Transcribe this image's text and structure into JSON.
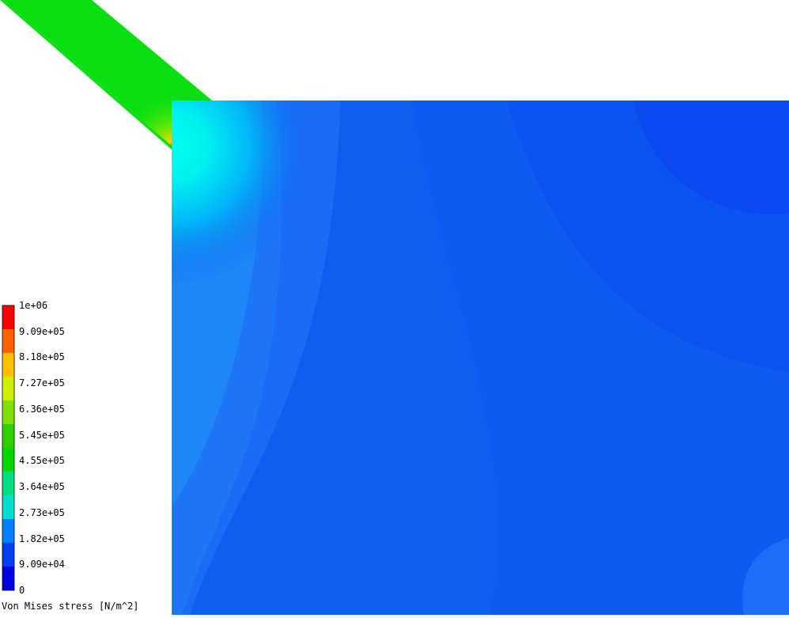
{
  "legend": {
    "title": "Von Mises stress [N/m^2]",
    "ticks": [
      "1e+06",
      "9.09e+05",
      "8.18e+05",
      "7.27e+05",
      "6.36e+05",
      "5.45e+05",
      "4.55e+05",
      "3.64e+05",
      "2.73e+05",
      "1.82e+05",
      "9.09e+04",
      "0"
    ],
    "bands": [
      "#ff0000",
      "#ff6000",
      "#ffc000",
      "#d0ee00",
      "#80e000",
      "#30d000",
      "#00d800",
      "#00e080",
      "#00e0d0",
      "#0080ff",
      "#0040f0",
      "#0000e0"
    ]
  },
  "colors": {
    "background": "#ffffff",
    "block_base": "#0f5ef2",
    "strut": "#08de10"
  }
}
